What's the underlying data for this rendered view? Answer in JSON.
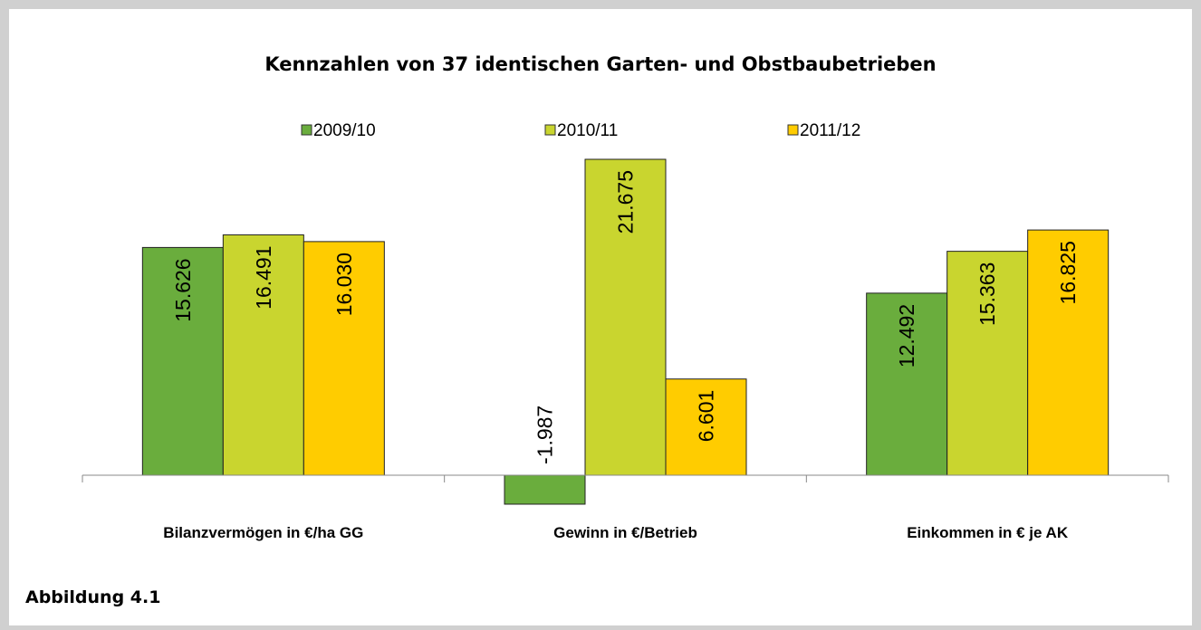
{
  "chart_data": {
    "type": "bar",
    "title": "Kennzahlen  von 37 identischen Garten- und Obstbaubetrieben",
    "categories": [
      "Bilanzvermögen in €/ha GG",
      "Gewinn in €/Betrieb",
      "Einkommen in € je AK"
    ],
    "series": [
      {
        "name": "2009/10",
        "color": "#6aad3d",
        "values": [
          15626,
          -1987,
          12492
        ],
        "value_labels": [
          "15.626",
          "-1.987",
          "12.492"
        ]
      },
      {
        "name": "2010/11",
        "color": "#c9d52f",
        "values": [
          16491,
          21675,
          15363
        ],
        "value_labels": [
          "16.491",
          "21.675",
          "15.363"
        ]
      },
      {
        "name": "2011/12",
        "color": "#ffcc00",
        "values": [
          16030,
          6601,
          16825
        ],
        "value_labels": [
          "16.030",
          "6.601",
          "16.825"
        ]
      }
    ],
    "legend": "top",
    "caption": "Abbildung 4.1"
  }
}
